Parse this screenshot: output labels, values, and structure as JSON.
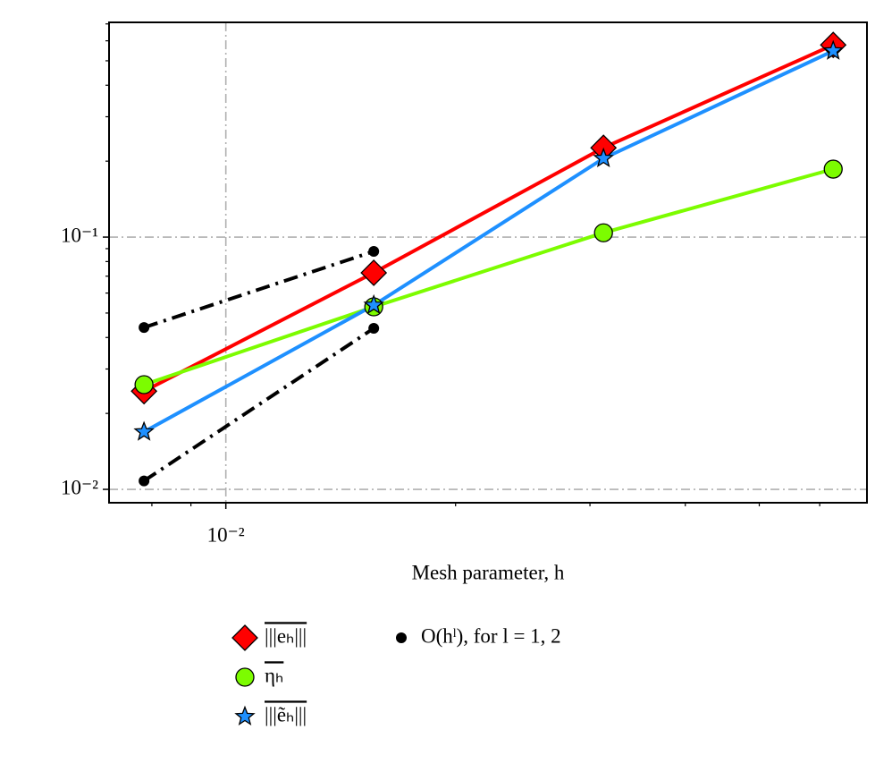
{
  "chart_data": {
    "type": "line",
    "xlabel": "Mesh parameter, h",
    "xscale": "log",
    "yscale": "log",
    "xlim": [
      0.00703,
      0.0692
    ],
    "ylim": [
      0.00885,
      0.71
    ],
    "xticks": [
      {
        "value": 0.01,
        "label": "10⁻²"
      }
    ],
    "yticks": [
      {
        "value": 0.01,
        "label": "10⁻²"
      },
      {
        "value": 0.1,
        "label": "10⁻¹"
      }
    ],
    "xminorticks": [
      0.008,
      0.009,
      0.02,
      0.03,
      0.04,
      0.05,
      0.06
    ],
    "yminorticks": [
      0.02,
      0.03,
      0.04,
      0.05,
      0.06,
      0.07,
      0.08,
      0.09,
      0.2,
      0.3,
      0.4,
      0.5,
      0.6,
      0.7
    ],
    "grid": true,
    "legend": "below",
    "series": [
      {
        "name": "|||eₕ|||",
        "color": "#ff0000",
        "marker": "diamond",
        "linestyle": "solid",
        "x": [
          0.0078125,
          0.015625,
          0.03125,
          0.0625
        ],
        "values": [
          0.0245,
          0.0722,
          0.226,
          0.578
        ]
      },
      {
        "name": "ηₕ",
        "color": "#7cfc00",
        "marker": "circle",
        "linestyle": "solid",
        "x": [
          0.0078125,
          0.015625,
          0.03125,
          0.0625
        ],
        "values": [
          0.026,
          0.0529,
          0.104,
          0.186
        ]
      },
      {
        "name": "|||ẽₕ|||",
        "color": "#1e90ff",
        "marker": "star",
        "linestyle": "solid",
        "x": [
          0.0078125,
          0.015625,
          0.03125,
          0.0625
        ],
        "values": [
          0.0169,
          0.0537,
          0.205,
          0.547
        ]
      },
      {
        "name": "O(hˡ), for l = 1, 2",
        "color": "#000000",
        "marker": "dot",
        "linestyle": "dashdot",
        "x": [
          0.0078125,
          0.015625
        ],
        "values": [
          0.0438,
          0.0878
        ]
      },
      {
        "color": "#000000",
        "marker": "dot",
        "linestyle": "dashdot",
        "x": [
          0.0078125,
          0.015625
        ],
        "values": [
          0.0108,
          0.0435
        ]
      }
    ]
  }
}
